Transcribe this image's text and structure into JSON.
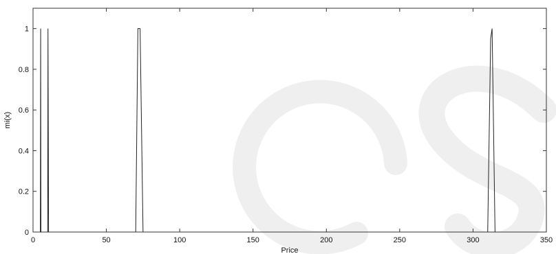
{
  "chart_data": {
    "type": "line",
    "xlabel": "Price",
    "ylabel": "mi(x)",
    "xlim": [
      0,
      350
    ],
    "ylim": [
      0,
      1.1
    ],
    "grid": false,
    "x_ticks": [
      0,
      50,
      100,
      150,
      200,
      250,
      300,
      350
    ],
    "x_tick_labels": [
      "0",
      "50",
      "100",
      "150",
      "200",
      "250",
      "300",
      "350"
    ],
    "y_ticks": [
      0,
      0.2,
      0.4,
      0.6,
      0.8,
      1
    ],
    "y_tick_labels": [
      "0",
      "0.2",
      "0.4",
      "0.6",
      "0.8",
      "1"
    ],
    "series": [
      {
        "x": [
          5,
          5.2,
          5.4
        ],
        "y": [
          0,
          1,
          0
        ]
      },
      {
        "x": [
          10,
          10.2,
          10.4,
          10.6
        ],
        "y": [
          0,
          1,
          0.5,
          0
        ]
      },
      {
        "x": [
          70,
          71.5,
          73,
          75
        ],
        "y": [
          0,
          1,
          1,
          0
        ]
      },
      {
        "x": [
          310,
          312,
          313,
          315
        ],
        "y": [
          0,
          0.95,
          1,
          0
        ]
      }
    ]
  }
}
